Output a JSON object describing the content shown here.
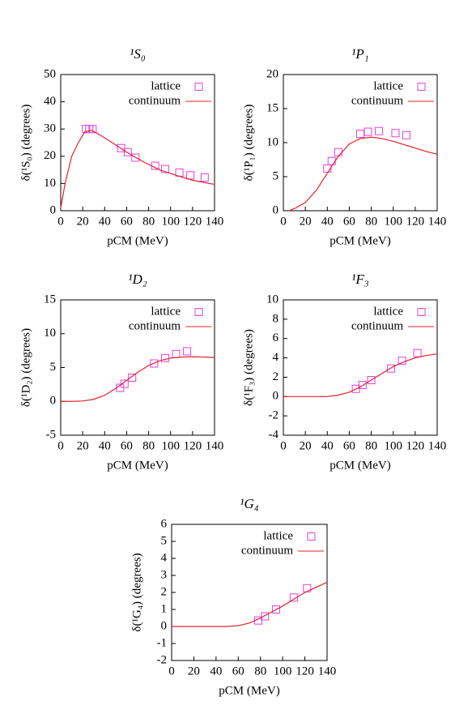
{
  "chart_data": [
    {
      "type": "line",
      "title": "¹S₀",
      "x_label": "pCM (MeV)",
      "y_label": "δ(¹S₀) (degrees)",
      "xlim": [
        0,
        140
      ],
      "xticks": [
        0,
        20,
        40,
        60,
        80,
        100,
        120,
        140
      ],
      "ylim": [
        0,
        50
      ],
      "yticks": [
        0,
        10,
        20,
        30,
        40,
        50
      ],
      "legend": "upper right",
      "series": [
        {
          "name": "lattice",
          "color": "#e040e0",
          "marker": "square",
          "x": [
            23,
            26,
            29,
            55,
            61,
            68,
            86,
            95,
            108,
            118,
            131
          ],
          "values": [
            30,
            30,
            30,
            23,
            21.5,
            19.5,
            16.5,
            15.3,
            14,
            13,
            12.2
          ]
        },
        {
          "name": "continuum",
          "color": "#e8202a",
          "marker": "line",
          "x": [
            0,
            4,
            10,
            16,
            22,
            28,
            35,
            45,
            60,
            75,
            90,
            105,
            120,
            135,
            140
          ],
          "values": [
            1,
            10,
            20,
            25,
            29,
            29.5,
            28,
            25.5,
            21.5,
            18,
            15,
            13,
            11.2,
            10,
            9.7
          ]
        }
      ]
    },
    {
      "type": "line",
      "title": "¹P₁",
      "x_label": "pCM (MeV)",
      "y_label": "δ(¹P₁) (degrees)",
      "xlim": [
        0,
        140
      ],
      "xticks": [
        0,
        20,
        40,
        60,
        80,
        100,
        120,
        140
      ],
      "ylim": [
        0,
        20
      ],
      "yticks": [
        0,
        5,
        10,
        15,
        20
      ],
      "legend": "upper right",
      "series": [
        {
          "name": "lattice",
          "color": "#e040e0",
          "marker": "square",
          "x": [
            40,
            44,
            50,
            70,
            77,
            87,
            102,
            112
          ],
          "values": [
            6.2,
            7.3,
            8.6,
            11.3,
            11.6,
            11.7,
            11.4,
            11.1
          ]
        },
        {
          "name": "continuum",
          "color": "#e8202a",
          "marker": "line",
          "x": [
            5,
            10,
            20,
            30,
            40,
            50,
            60,
            70,
            80,
            90,
            100,
            110,
            120,
            130,
            140
          ],
          "values": [
            0,
            0.3,
            1.2,
            3,
            5.5,
            8,
            9.8,
            10.6,
            10.8,
            10.6,
            10.2,
            9.7,
            9.2,
            8.7,
            8.3
          ]
        }
      ]
    },
    {
      "type": "line",
      "title": "¹D₂",
      "x_label": "pCM (MeV)",
      "y_label": "δ(¹D₂) (degrees)",
      "xlim": [
        0,
        140
      ],
      "xticks": [
        0,
        20,
        40,
        60,
        80,
        100,
        120,
        140
      ],
      "ylim": [
        -5,
        15
      ],
      "yticks": [
        -5,
        0,
        5,
        10,
        15
      ],
      "legend": "upper right",
      "series": [
        {
          "name": "lattice",
          "color": "#e040e0",
          "marker": "square",
          "x": [
            54,
            58,
            65,
            85,
            95,
            105,
            115
          ],
          "values": [
            2,
            2.6,
            3.5,
            5.6,
            6.4,
            7,
            7.4
          ]
        },
        {
          "name": "continuum",
          "color": "#e8202a",
          "marker": "line",
          "x": [
            0,
            10,
            20,
            30,
            40,
            50,
            60,
            70,
            80,
            90,
            100,
            110,
            120,
            130,
            140
          ],
          "values": [
            0,
            0,
            0.05,
            0.3,
            0.9,
            1.9,
            3.1,
            4.3,
            5.3,
            6,
            6.4,
            6.55,
            6.6,
            6.55,
            6.5
          ]
        }
      ]
    },
    {
      "type": "line",
      "title": "¹F₃",
      "x_label": "pCM (MeV)",
      "y_label": "δ(¹F₃) (degrees)",
      "xlim": [
        0,
        140
      ],
      "xticks": [
        0,
        20,
        40,
        60,
        80,
        100,
        120,
        140
      ],
      "ylim": [
        -4,
        10
      ],
      "yticks": [
        -4,
        -2,
        0,
        2,
        4,
        6,
        8,
        10
      ],
      "legend": "upper right",
      "series": [
        {
          "name": "lattice",
          "color": "#e040e0",
          "marker": "square",
          "x": [
            66,
            72,
            80,
            98,
            108,
            122
          ],
          "values": [
            0.8,
            1.2,
            1.7,
            2.9,
            3.7,
            4.5
          ]
        },
        {
          "name": "continuum",
          "color": "#e8202a",
          "marker": "line",
          "x": [
            0,
            40,
            50,
            60,
            70,
            80,
            90,
            100,
            110,
            120,
            130,
            140
          ],
          "values": [
            0,
            0,
            0.15,
            0.45,
            1,
            1.7,
            2.4,
            3.1,
            3.6,
            4,
            4.25,
            4.4
          ]
        }
      ]
    },
    {
      "type": "line",
      "title": "¹G₄",
      "x_label": "pCM (MeV)",
      "y_label": "δ(¹G₄) (degrees)",
      "xlim": [
        0,
        140
      ],
      "xticks": [
        0,
        20,
        40,
        60,
        80,
        100,
        120,
        140
      ],
      "ylim": [
        -2,
        6
      ],
      "yticks": [
        -2,
        -1,
        0,
        1,
        2,
        3,
        4,
        5,
        6
      ],
      "legend": "upper right",
      "series": [
        {
          "name": "lattice",
          "color": "#e040e0",
          "marker": "square",
          "x": [
            78,
            84,
            94,
            110,
            122
          ],
          "values": [
            0.35,
            0.6,
            1,
            1.7,
            2.25
          ]
        },
        {
          "name": "continuum",
          "color": "#e8202a",
          "marker": "line",
          "x": [
            0,
            50,
            60,
            70,
            80,
            90,
            100,
            110,
            120,
            130,
            140
          ],
          "values": [
            0,
            0,
            0.05,
            0.2,
            0.5,
            0.85,
            1.2,
            1.6,
            2,
            2.3,
            2.6
          ]
        }
      ]
    }
  ]
}
